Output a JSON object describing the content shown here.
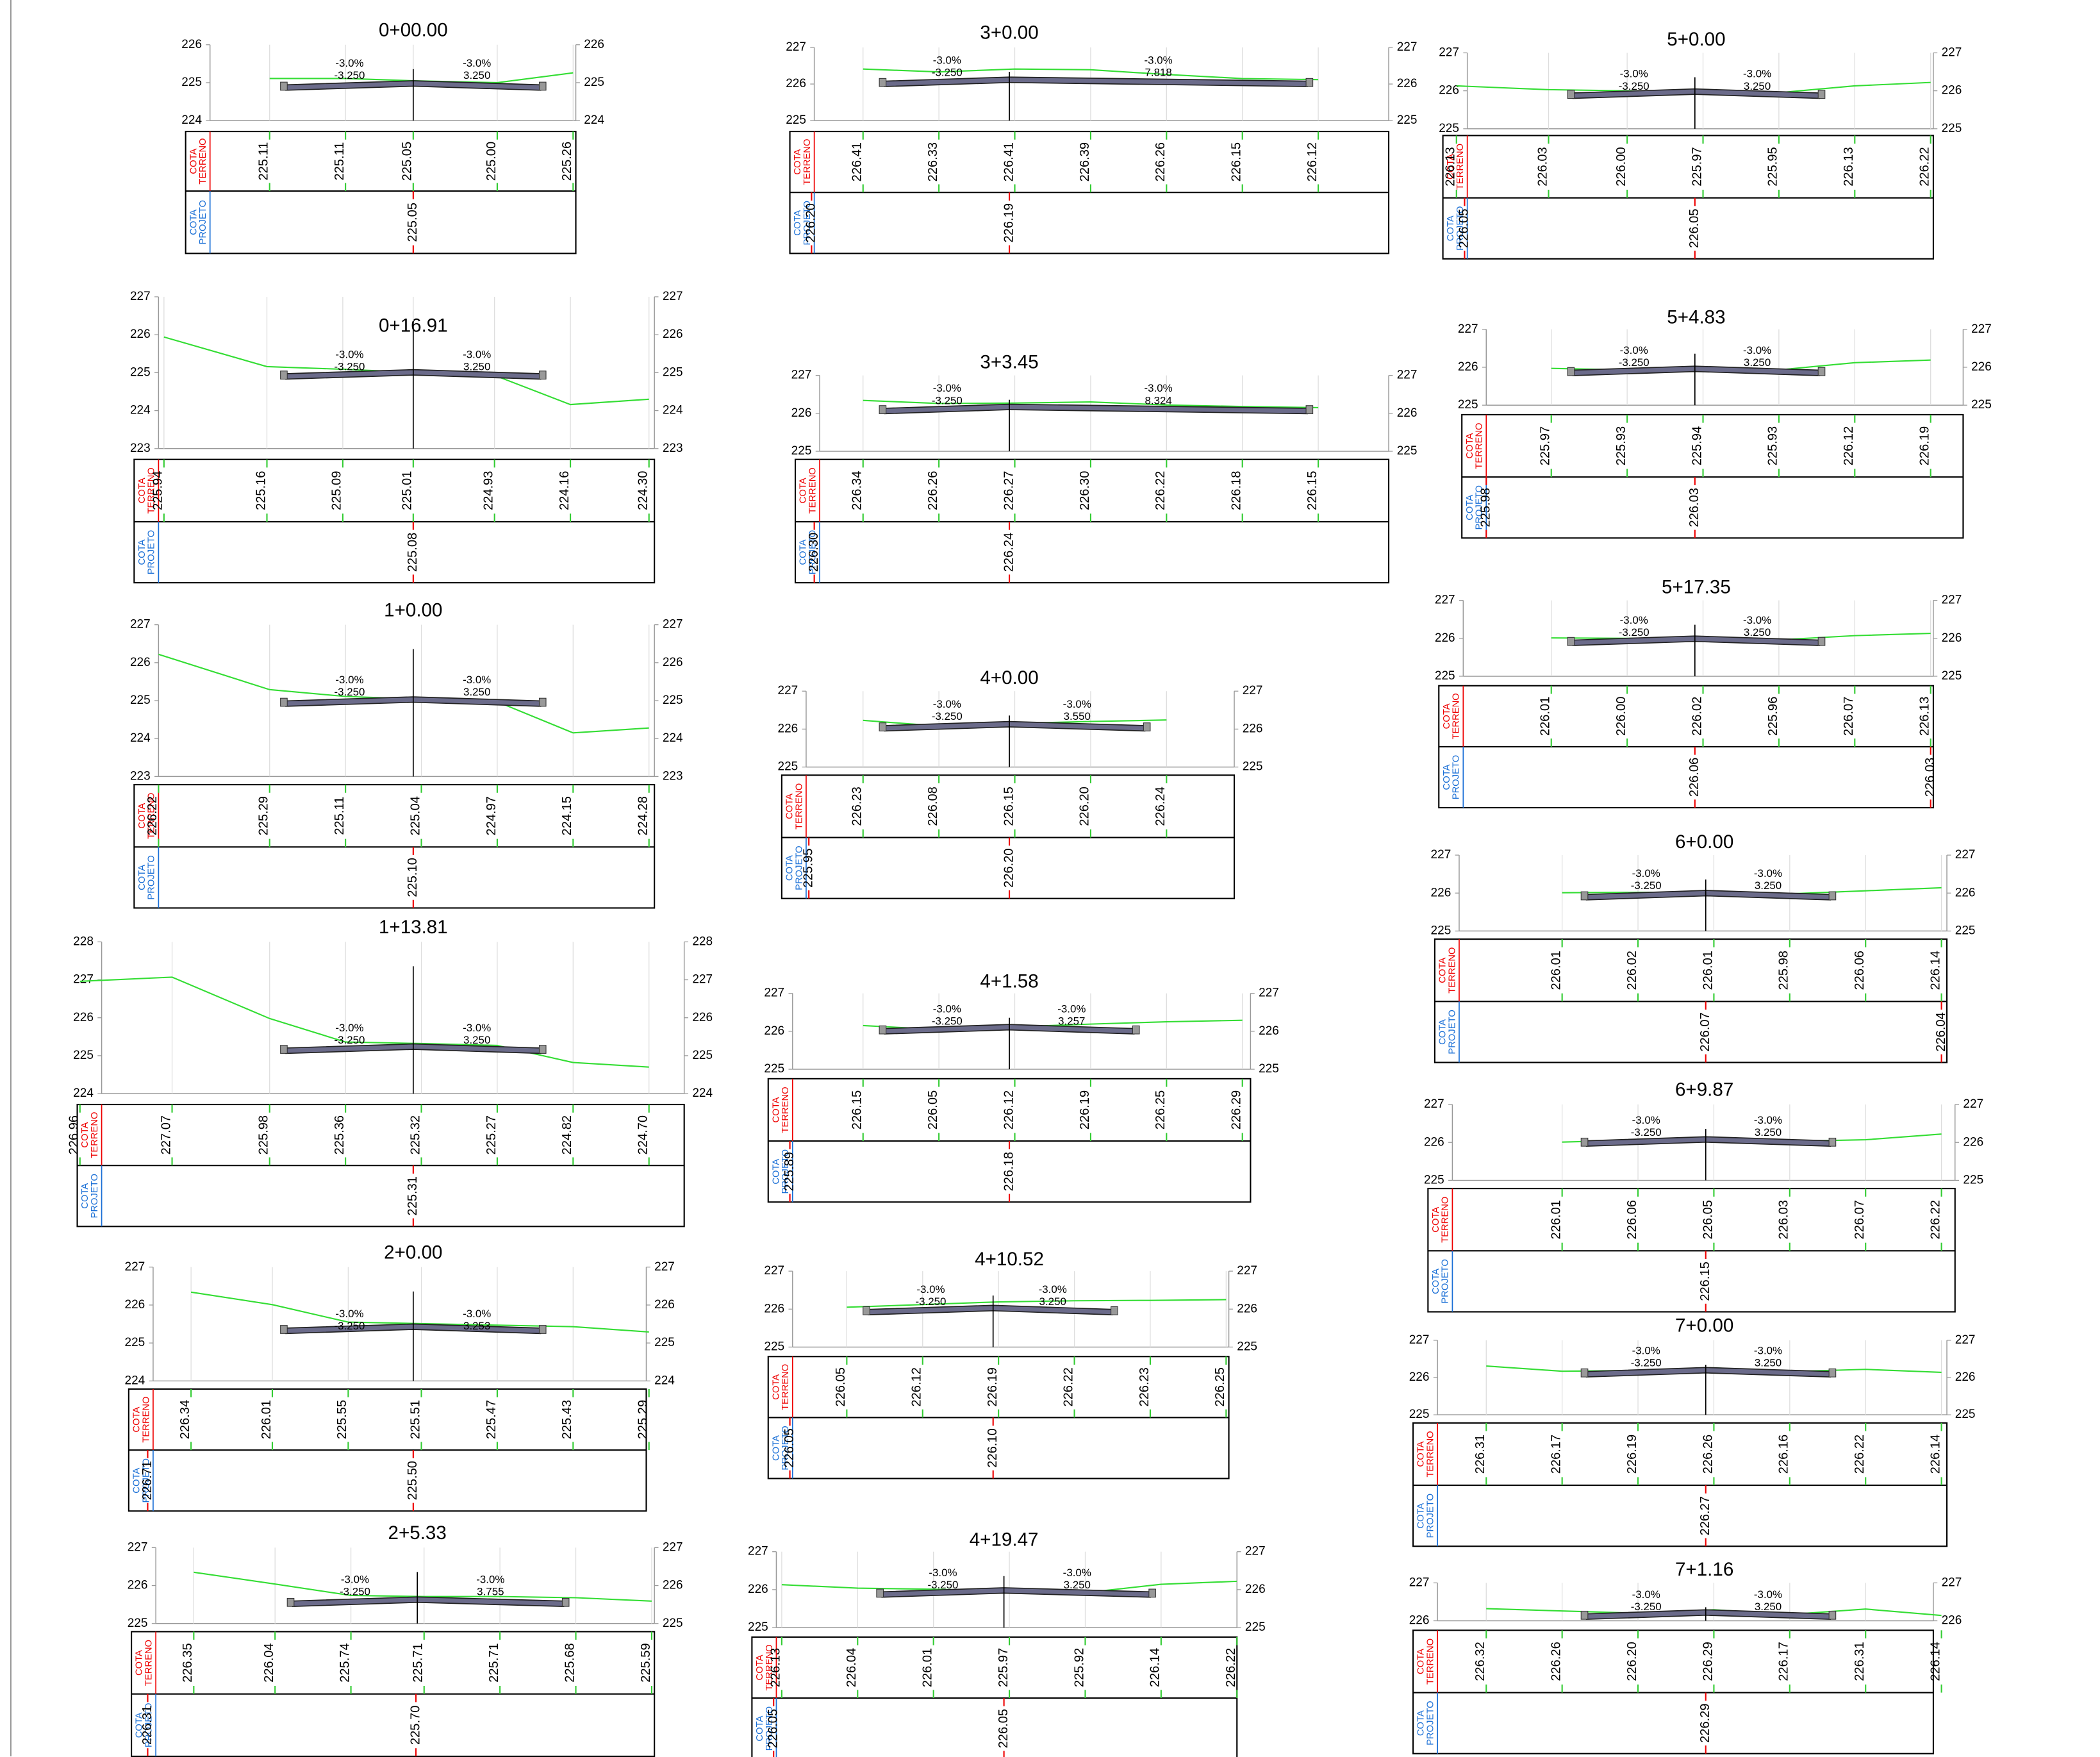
{
  "labels": {
    "cota": "COTA",
    "terreno": "TERRENO",
    "projeto": "PROJETO"
  },
  "sections": [
    {
      "station": "0+00.00",
      "yticks": [
        226,
        225,
        224
      ],
      "slopes": [
        {
          "grade": "-3.0%",
          "width": "-3.250"
        },
        {
          "grade": "-3.0%",
          "width": "3.250"
        }
      ],
      "terreno": [
        "225.11",
        "225.11",
        "225.05",
        "225.00",
        "225.26"
      ],
      "projeto": [
        "225.05"
      ]
    },
    {
      "station": "0+16.91",
      "yticks": [
        227,
        226,
        225,
        224,
        223
      ],
      "slopes": [
        {
          "grade": "-3.0%",
          "width": "-3.250"
        },
        {
          "grade": "-3.0%",
          "width": "3.250"
        }
      ],
      "terreno": [
        "225.94",
        "225.16",
        "225.09",
        "225.01",
        "224.93",
        "224.16",
        "224.30"
      ],
      "projeto": [
        "225.08"
      ]
    },
    {
      "station": "1+0.00",
      "yticks": [
        227,
        226,
        225,
        224,
        223
      ],
      "slopes": [
        {
          "grade": "-3.0%",
          "width": "-3.250"
        },
        {
          "grade": "-3.0%",
          "width": "3.250"
        }
      ],
      "terreno": [
        "226.22",
        "225.29",
        "225.11",
        "225.04",
        "224.97",
        "224.15",
        "224.28"
      ],
      "projeto": [
        "225.10"
      ]
    },
    {
      "station": "1+13.81",
      "yticks": [
        228,
        227,
        226,
        225,
        224
      ],
      "slopes": [
        {
          "grade": "-3.0%",
          "width": "-3.250"
        },
        {
          "grade": "-3.0%",
          "width": "3.250"
        }
      ],
      "terreno": [
        "226.96",
        "227.07",
        "225.98",
        "225.36",
        "225.32",
        "225.27",
        "224.82",
        "224.70"
      ],
      "projeto": [
        "225.31"
      ]
    },
    {
      "station": "2+0.00",
      "yticks": [
        227,
        226,
        225,
        224
      ],
      "slopes": [
        {
          "grade": "-3.0%",
          "width": "-3.250"
        },
        {
          "grade": "-3.0%",
          "width": "3.253"
        }
      ],
      "terreno": [
        "226.34",
        "226.01",
        "225.55",
        "225.51",
        "225.47",
        "225.43",
        "225.29"
      ],
      "projeto": [
        "226.71",
        "225.50"
      ]
    },
    {
      "station": "2+5.33",
      "yticks": [
        227,
        226,
        225
      ],
      "slopes": [
        {
          "grade": "-3.0%",
          "width": "-3.250"
        },
        {
          "grade": "-3.0%",
          "width": "3.755"
        }
      ],
      "terreno": [
        "226.35",
        "226.04",
        "225.74",
        "225.71",
        "225.71",
        "225.68",
        "225.59"
      ],
      "projeto": [
        "226.31",
        "225.70"
      ]
    },
    {
      "station": "3+0.00",
      "yticks": [
        227,
        226,
        225
      ],
      "slopes": [
        {
          "grade": "-3.0%",
          "width": "-3.250"
        },
        {
          "grade": "-3.0%",
          "width": "7.818"
        }
      ],
      "terreno": [
        "226.41",
        "226.33",
        "226.41",
        "226.39",
        "226.26",
        "226.15",
        "226.12"
      ],
      "projeto": [
        "226.20",
        "226.19"
      ]
    },
    {
      "station": "3+3.45",
      "yticks": [
        227,
        226,
        225
      ],
      "slopes": [
        {
          "grade": "-3.0%",
          "width": "-3.250"
        },
        {
          "grade": "-3.0%",
          "width": "8.324"
        }
      ],
      "terreno": [
        "226.34",
        "226.26",
        "226.27",
        "226.30",
        "226.22",
        "226.18",
        "226.15"
      ],
      "projeto": [
        "226.30",
        "226.24"
      ]
    },
    {
      "station": "4+0.00",
      "yticks": [
        227,
        226,
        225
      ],
      "slopes": [
        {
          "grade": "-3.0%",
          "width": "-3.250"
        },
        {
          "grade": "-3.0%",
          "width": "3.550"
        }
      ],
      "terreno": [
        "226.23",
        "226.08",
        "226.15",
        "226.20",
        "226.24"
      ],
      "projeto": [
        "225.95",
        "226.20"
      ]
    },
    {
      "station": "4+1.58",
      "yticks": [
        227,
        226,
        225
      ],
      "slopes": [
        {
          "grade": "-3.0%",
          "width": "-3.250"
        },
        {
          "grade": "-3.0%",
          "width": "3.257"
        }
      ],
      "terreno": [
        "226.15",
        "226.05",
        "226.12",
        "226.19",
        "226.25",
        "226.29"
      ],
      "projeto": [
        "225.89",
        "226.18"
      ]
    },
    {
      "station": "4+10.52",
      "yticks": [
        227,
        226,
        225
      ],
      "slopes": [
        {
          "grade": "-3.0%",
          "width": "-3.250"
        },
        {
          "grade": "-3.0%",
          "width": "3.250"
        }
      ],
      "terreno": [
        "226.05",
        "226.12",
        "226.19",
        "226.22",
        "226.23",
        "226.25"
      ],
      "projeto": [
        "226.05",
        "226.10"
      ]
    },
    {
      "station": "4+19.47",
      "yticks": [
        227,
        226,
        225
      ],
      "slopes": [
        {
          "grade": "-3.0%",
          "width": "-3.250"
        },
        {
          "grade": "-3.0%",
          "width": "3.250"
        }
      ],
      "terreno": [
        "226.13",
        "226.04",
        "226.01",
        "225.97",
        "225.92",
        "226.14",
        "226.22"
      ],
      "projeto": [
        "226.05",
        "226.05"
      ]
    },
    {
      "station": "5+0.00",
      "yticks": [
        227,
        226,
        225
      ],
      "slopes": [
        {
          "grade": "-3.0%",
          "width": "-3.250"
        },
        {
          "grade": "-3.0%",
          "width": "3.250"
        }
      ],
      "terreno": [
        "226.13",
        "226.03",
        "226.00",
        "225.97",
        "225.95",
        "226.13",
        "226.22"
      ],
      "projeto": [
        "226.05",
        "226.05"
      ]
    },
    {
      "station": "5+4.83",
      "yticks": [
        227,
        226,
        225
      ],
      "slopes": [
        {
          "grade": "-3.0%",
          "width": "-3.250"
        },
        {
          "grade": "-3.0%",
          "width": "3.250"
        }
      ],
      "terreno": [
        "225.97",
        "225.93",
        "225.94",
        "225.93",
        "226.12",
        "226.19"
      ],
      "projeto": [
        "225.98",
        "226.03"
      ]
    },
    {
      "station": "5+17.35",
      "yticks": [
        227,
        226,
        225
      ],
      "slopes": [
        {
          "grade": "-3.0%",
          "width": "-3.250"
        },
        {
          "grade": "-3.0%",
          "width": "3.250"
        }
      ],
      "terreno": [
        "226.01",
        "226.00",
        "226.02",
        "225.96",
        "226.07",
        "226.13"
      ],
      "projeto": [
        "226.06",
        "226.03"
      ]
    },
    {
      "station": "6+0.00",
      "yticks": [
        227,
        226,
        225
      ],
      "slopes": [
        {
          "grade": "-3.0%",
          "width": "-3.250"
        },
        {
          "grade": "-3.0%",
          "width": "3.250"
        }
      ],
      "terreno": [
        "226.01",
        "226.02",
        "226.01",
        "225.98",
        "226.06",
        "226.14"
      ],
      "projeto": [
        "226.07",
        "226.04"
      ]
    },
    {
      "station": "6+9.87",
      "yticks": [
        227,
        226,
        225
      ],
      "slopes": [
        {
          "grade": "-3.0%",
          "width": "-3.250"
        },
        {
          "grade": "-3.0%",
          "width": "3.250"
        }
      ],
      "terreno": [
        "226.01",
        "226.06",
        "226.05",
        "226.03",
        "226.07",
        "226.22"
      ],
      "projeto": [
        "226.15"
      ]
    },
    {
      "station": "7+0.00",
      "yticks": [
        227,
        226,
        225
      ],
      "slopes": [
        {
          "grade": "-3.0%",
          "width": "-3.250"
        },
        {
          "grade": "-3.0%",
          "width": "3.250"
        }
      ],
      "terreno": [
        "226.31",
        "226.17",
        "226.19",
        "226.26",
        "226.16",
        "226.22",
        "226.14"
      ],
      "projeto": [
        "226.27"
      ]
    },
    {
      "station": "7+1.16",
      "yticks": [
        227,
        226
      ],
      "slopes": [
        {
          "grade": "-3.0%",
          "width": "-3.250"
        },
        {
          "grade": "-3.0%",
          "width": "3.250"
        }
      ],
      "terreno": [
        "226.32",
        "226.26",
        "226.20",
        "226.29",
        "226.17",
        "226.31",
        "226.14"
      ],
      "projeto": [
        "226.29"
      ]
    }
  ]
}
